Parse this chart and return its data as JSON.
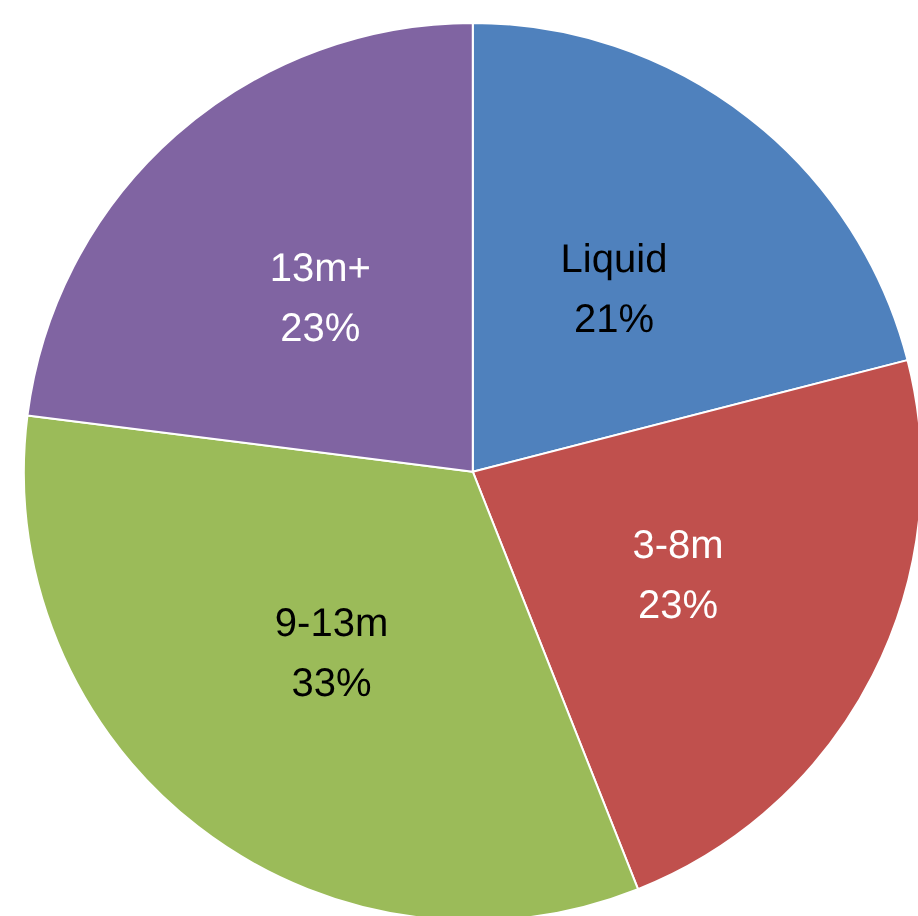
{
  "chart_data": {
    "type": "pie",
    "categories": [
      "Liquid",
      "3-8m",
      "9-13m",
      "13m+"
    ],
    "values": [
      21,
      23,
      33,
      23
    ],
    "value_labels": [
      "21%",
      "23%",
      "33%",
      "23%"
    ],
    "colors": [
      "#4f81bd",
      "#c0504d",
      "#9bbb59",
      "#8064a2"
    ],
    "legend": false
  }
}
